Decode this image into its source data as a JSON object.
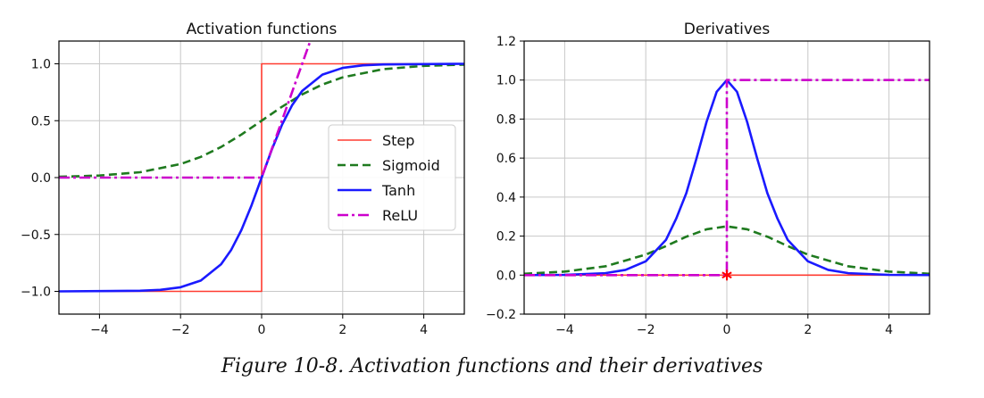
{
  "figure": {
    "caption": "Figure 10-8. Activation functions and their derivatives"
  },
  "colors": {
    "step": "#ff3b30",
    "sigmoid": "#1f7a1f",
    "tanh": "#1a1aff",
    "relu": "#cc00cc",
    "grid": "#c8c8c8",
    "marker": "#ff0000"
  },
  "chart_data": [
    {
      "type": "line",
      "title": "Activation functions",
      "xlabel": "",
      "ylabel": "",
      "xlim": [
        -5,
        5
      ],
      "ylim": [
        -1.2,
        1.2
      ],
      "xticks": [
        -4,
        -2,
        0,
        2,
        4
      ],
      "xtick_labels": [
        "−4",
        "−2",
        "0",
        "2",
        "4"
      ],
      "yticks": [
        -1.0,
        -0.5,
        0.0,
        0.5,
        1.0
      ],
      "ytick_labels": [
        "−1.0",
        "−0.5",
        "0.0",
        "0.5",
        "1.0"
      ],
      "grid": true,
      "legend": {
        "placement": "center-right",
        "entries": [
          "Step",
          "Sigmoid",
          "Tanh",
          "ReLU"
        ]
      },
      "series": [
        {
          "name": "Step",
          "style": "solid",
          "color_key": "step",
          "points": [
            [
              -5,
              -1
            ],
            [
              0,
              -1
            ],
            [
              0,
              1
            ],
            [
              5,
              1
            ]
          ]
        },
        {
          "name": "Sigmoid",
          "style": "dashed",
          "color_key": "sigmoid",
          "points": [
            [
              -5,
              0.007
            ],
            [
              -4,
              0.018
            ],
            [
              -3,
              0.047
            ],
            [
              -2,
              0.119
            ],
            [
              -1.5,
              0.182
            ],
            [
              -1,
              0.269
            ],
            [
              -0.5,
              0.378
            ],
            [
              0,
              0.5
            ],
            [
              0.5,
              0.622
            ],
            [
              1,
              0.731
            ],
            [
              1.5,
              0.818
            ],
            [
              2,
              0.881
            ],
            [
              3,
              0.953
            ],
            [
              4,
              0.982
            ],
            [
              5,
              0.993
            ]
          ]
        },
        {
          "name": "Tanh",
          "style": "solid",
          "color_key": "tanh",
          "points": [
            [
              -5,
              -1.0
            ],
            [
              -3,
              -0.995
            ],
            [
              -2.5,
              -0.987
            ],
            [
              -2,
              -0.964
            ],
            [
              -1.5,
              -0.905
            ],
            [
              -1,
              -0.762
            ],
            [
              -0.75,
              -0.635
            ],
            [
              -0.5,
              -0.462
            ],
            [
              -0.25,
              -0.245
            ],
            [
              0,
              0.0
            ],
            [
              0.25,
              0.245
            ],
            [
              0.5,
              0.462
            ],
            [
              0.75,
              0.635
            ],
            [
              1,
              0.762
            ],
            [
              1.5,
              0.905
            ],
            [
              2,
              0.964
            ],
            [
              2.5,
              0.987
            ],
            [
              3,
              0.995
            ],
            [
              5,
              1.0
            ]
          ]
        },
        {
          "name": "ReLU",
          "style": "dashdot",
          "color_key": "relu",
          "points": [
            [
              -5,
              0
            ],
            [
              0,
              0
            ],
            [
              1.2,
              1.2
            ]
          ]
        }
      ]
    },
    {
      "type": "line",
      "title": "Derivatives",
      "xlabel": "",
      "ylabel": "",
      "xlim": [
        -5,
        5
      ],
      "ylim": [
        -0.2,
        1.2
      ],
      "xticks": [
        -4,
        -2,
        0,
        2,
        4
      ],
      "xtick_labels": [
        "−4",
        "−2",
        "0",
        "2",
        "4"
      ],
      "yticks": [
        -0.2,
        0.0,
        0.2,
        0.4,
        0.6,
        0.8,
        1.0,
        1.2
      ],
      "ytick_labels": [
        "−0.2",
        "0.0",
        "0.2",
        "0.4",
        "0.6",
        "0.8",
        "1.0",
        "1.2"
      ],
      "grid": true,
      "legend": null,
      "series": [
        {
          "style": "solid",
          "color_key": "step",
          "points": [
            [
              -5,
              0
            ],
            [
              5,
              0
            ]
          ]
        },
        {
          "style": "dashed",
          "color_key": "sigmoid",
          "points": [
            [
              -5,
              0.007
            ],
            [
              -4,
              0.018
            ],
            [
              -3,
              0.045
            ],
            [
              -2,
              0.105
            ],
            [
              -1.5,
              0.149
            ],
            [
              -1,
              0.197
            ],
            [
              -0.5,
              0.235
            ],
            [
              0,
              0.25
            ],
            [
              0.5,
              0.235
            ],
            [
              1,
              0.197
            ],
            [
              1.5,
              0.149
            ],
            [
              2,
              0.105
            ],
            [
              3,
              0.045
            ],
            [
              4,
              0.018
            ],
            [
              5,
              0.007
            ]
          ]
        },
        {
          "style": "solid",
          "color_key": "tanh",
          "points": [
            [
              -5,
              0.0002
            ],
            [
              -4,
              0.0013
            ],
            [
              -3,
              0.0099
            ],
            [
              -2.5,
              0.0266
            ],
            [
              -2,
              0.0707
            ],
            [
              -1.5,
              0.181
            ],
            [
              -1.25,
              0.289
            ],
            [
              -1,
              0.42
            ],
            [
              -0.75,
              0.597
            ],
            [
              -0.5,
              0.786
            ],
            [
              -0.25,
              0.94
            ],
            [
              0,
              1.0
            ],
            [
              0.25,
              0.94
            ],
            [
              0.5,
              0.786
            ],
            [
              0.75,
              0.597
            ],
            [
              1,
              0.42
            ],
            [
              1.25,
              0.289
            ],
            [
              1.5,
              0.181
            ],
            [
              2,
              0.0707
            ],
            [
              2.5,
              0.0266
            ],
            [
              3,
              0.0099
            ],
            [
              4,
              0.0013
            ],
            [
              5,
              0.0002
            ]
          ]
        },
        {
          "style": "dashdot",
          "color_key": "relu",
          "points": [
            [
              -5,
              0
            ],
            [
              0,
              0
            ],
            [
              0,
              1
            ],
            [
              5,
              1
            ]
          ]
        }
      ],
      "markers": [
        {
          "x": 0,
          "y": 0,
          "symbol": "star",
          "color_key": "marker"
        }
      ]
    }
  ]
}
